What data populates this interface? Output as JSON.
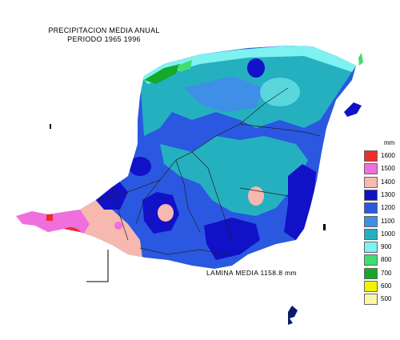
{
  "title": {
    "line1": "PRECIPITACION MEDIA ANUAL",
    "line2": "PERIODO 1965 1996"
  },
  "summary": {
    "text": "LAMINA MEDIA  1158.8  mm"
  },
  "legend": {
    "unit": "mm",
    "items": [
      {
        "label": "1600",
        "color": "#ef2b2b"
      },
      {
        "label": "1500",
        "color": "#f06fdc"
      },
      {
        "label": "1400",
        "color": "#f7b8b0"
      },
      {
        "label": "1300",
        "color": "#1111c8"
      },
      {
        "label": "1200",
        "color": "#2a58e0"
      },
      {
        "label": "1100",
        "color": "#3f8fe6"
      },
      {
        "label": "1000",
        "color": "#25b0c0"
      },
      {
        "label": "900",
        "color": "#7ef2f0"
      },
      {
        "label": "800",
        "color": "#40dd70"
      },
      {
        "label": "700",
        "color": "#15a82a"
      },
      {
        "label": "600",
        "color": "#f2f208"
      },
      {
        "label": "500",
        "color": "#fbf7a8"
      }
    ]
  }
}
